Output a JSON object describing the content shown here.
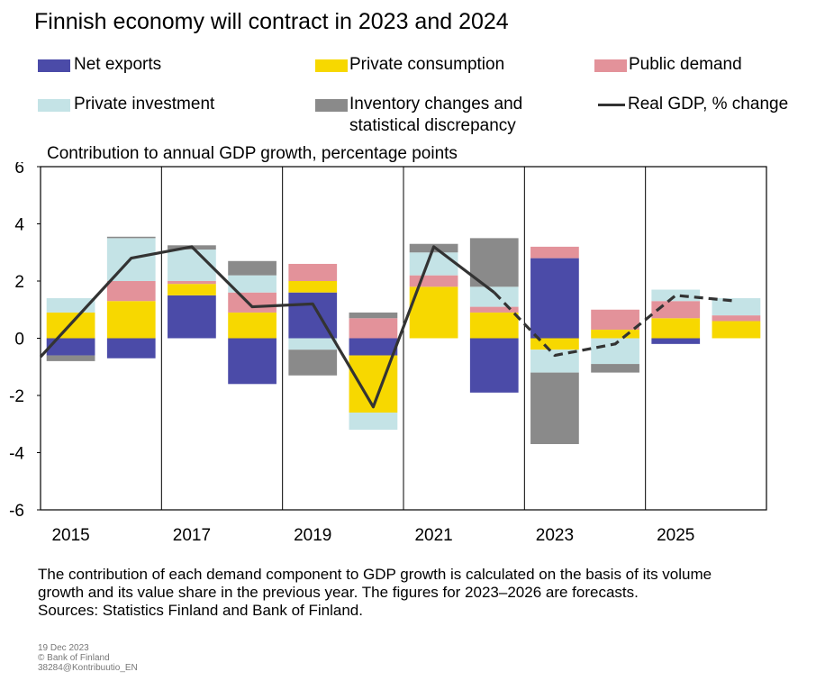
{
  "title": "Finnish economy will contract in 2023 and 2024",
  "subtitle": "Contribution to annual GDP growth, percentage points",
  "legend": [
    {
      "label": "Net exports",
      "color": "#4b4ba8"
    },
    {
      "label": "Private consumption",
      "color": "#f7d800"
    },
    {
      "label": "Public demand",
      "color": "#e3929a"
    },
    {
      "label": "Private investment",
      "color": "#c4e3e6"
    },
    {
      "label_line1": "Inventory changes and",
      "label_line2": "statistical discrepancy",
      "color": "#8a8a8a"
    },
    {
      "label": "Real GDP, % change",
      "color": "#333333"
    }
  ],
  "footnote": {
    "line1": "The contribution of each demand component to GDP growth is calculated on the basis of its volume",
    "line2": "growth and its value share in the previous year. The figures for 2023–2026 are forecasts.",
    "line3": "Sources: Statistics Finland and Bank of Finland."
  },
  "meta": {
    "date": "19 Dec 2023",
    "copyright": "© Bank of Finland",
    "code": "38284@Kontribuutio_EN"
  },
  "chart_data": {
    "type": "bar",
    "stacked": true,
    "categories": [
      "2015",
      "2016",
      "2017",
      "2018",
      "2019",
      "2020",
      "2021",
      "2022",
      "2023",
      "2024",
      "2025",
      "2026"
    ],
    "x_tick_labels": [
      "2015",
      "2017",
      "2019",
      "2021",
      "2023",
      "2025"
    ],
    "ylim": [
      -6,
      6
    ],
    "yticks": [
      6,
      4,
      2,
      0,
      -2,
      -4,
      -6
    ],
    "ylabel": "Contribution to annual GDP growth, percentage points",
    "grid": "vertical lines every two years",
    "forecast_from": "2023",
    "series": [
      {
        "name": "Net exports",
        "color": "#4b4ba8",
        "values": [
          -0.6,
          -0.7,
          1.5,
          -1.6,
          1.6,
          -0.6,
          0.0,
          -1.9,
          2.8,
          0.0,
          -0.2,
          0.0
        ]
      },
      {
        "name": "Private consumption",
        "color": "#f7d800",
        "values": [
          0.9,
          1.3,
          0.4,
          0.9,
          0.4,
          -2.0,
          1.8,
          0.9,
          -0.4,
          0.3,
          0.7,
          0.6
        ]
      },
      {
        "name": "Public demand",
        "color": "#e3929a",
        "values": [
          0.0,
          0.7,
          0.1,
          0.7,
          0.6,
          0.7,
          0.4,
          0.2,
          0.4,
          0.7,
          0.6,
          0.2
        ]
      },
      {
        "name": "Private investment",
        "color": "#c4e3e6",
        "values": [
          0.5,
          1.5,
          1.1,
          0.6,
          -0.4,
          -0.6,
          0.8,
          0.7,
          -0.8,
          -0.9,
          0.4,
          0.6
        ]
      },
      {
        "name": "Inventory changes and statistical discrepancy",
        "color": "#8a8a8a",
        "values": [
          -0.2,
          0.05,
          0.15,
          0.5,
          -0.9,
          0.2,
          0.3,
          1.7,
          -2.5,
          -0.3,
          0.0,
          0.0
        ]
      }
    ],
    "line": {
      "name": "Real GDP, % change",
      "color": "#333333",
      "values": [
        0.5,
        2.8,
        3.2,
        1.1,
        1.2,
        -2.4,
        3.2,
        1.6,
        -0.6,
        -0.2,
        1.5,
        1.3
      ],
      "dashed_from_index": 7
    }
  }
}
